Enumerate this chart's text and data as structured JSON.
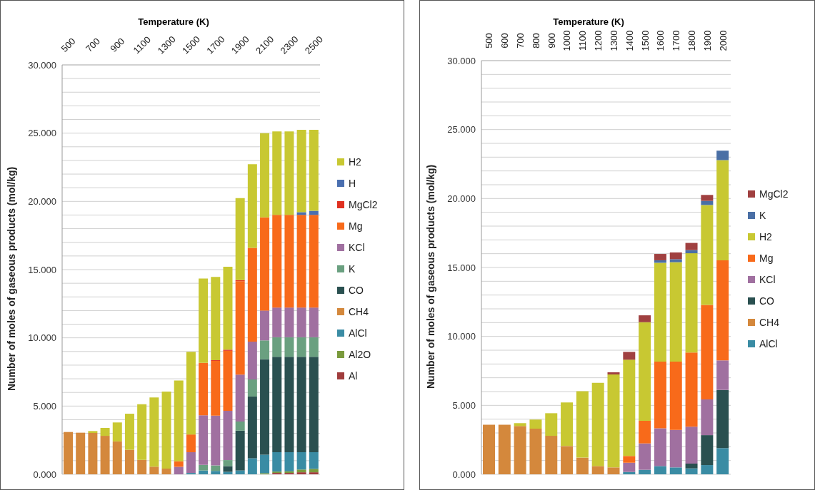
{
  "chart_data": [
    {
      "type": "bar",
      "stacked": true,
      "xlabel": "Temperature (K)",
      "ylabel": "Number of moles of gaseous products (mol/kg)",
      "categories": [
        "500",
        null,
        "700",
        null,
        "900",
        null,
        "1100",
        null,
        "1300",
        null,
        "1500",
        null,
        "1700",
        null,
        "1900",
        null,
        "2100",
        null,
        "2300",
        null,
        "2500"
      ],
      "series": [
        {
          "name": "Al",
          "color": "#a03c3c",
          "values": [
            null,
            null,
            null,
            null,
            null,
            null,
            null,
            null,
            null,
            null,
            null,
            null,
            null,
            null,
            null,
            null,
            null,
            0.1,
            0.1,
            0.15,
            0.15
          ]
        },
        {
          "name": "Al2O",
          "color": "#7a9a3c",
          "values": [
            null,
            null,
            null,
            null,
            null,
            null,
            null,
            null,
            null,
            null,
            null,
            null,
            null,
            null,
            null,
            null,
            0.08,
            0.1,
            0.12,
            0.2,
            0.25
          ]
        },
        {
          "name": "AlCl",
          "color": "#3a8ca4",
          "values": [
            null,
            null,
            null,
            null,
            null,
            null,
            null,
            null,
            null,
            null,
            0.1,
            0.28,
            0.25,
            0.18,
            0.28,
            1.18,
            1.36,
            1.42,
            1.4,
            1.27,
            1.22
          ]
        },
        {
          "name": "CH4",
          "color": "#d4883c",
          "values": [
            3.1,
            3.05,
            3.03,
            2.82,
            2.41,
            1.8,
            1.06,
            0.56,
            0.42,
            null,
            null,
            null,
            null,
            null,
            null,
            null,
            null,
            null,
            null,
            null,
            null
          ]
        },
        {
          "name": "CO",
          "color": "#2a5050",
          "values": [
            null,
            null,
            null,
            null,
            null,
            null,
            null,
            null,
            null,
            null,
            null,
            null,
            null,
            0.42,
            2.92,
            4.52,
            6.99,
            6.99,
            6.99,
            6.99,
            6.99
          ]
        },
        {
          "name": "K",
          "color": "#6aa080",
          "values": [
            null,
            null,
            null,
            null,
            null,
            null,
            null,
            null,
            null,
            null,
            null,
            0.41,
            0.4,
            0.44,
            0.67,
            1.25,
            1.38,
            1.43,
            1.43,
            1.43,
            1.43
          ]
        },
        {
          "name": "KCl",
          "color": "#a070a0",
          "values": [
            null,
            null,
            null,
            null,
            null,
            null,
            null,
            null,
            null,
            0.55,
            1.52,
            3.64,
            3.65,
            3.61,
            3.44,
            2.77,
            2.19,
            2.18,
            2.18,
            2.18,
            2.18
          ]
        },
        {
          "name": "Mg",
          "color": "#f86a1a",
          "values": [
            null,
            null,
            null,
            null,
            null,
            null,
            null,
            null,
            null,
            0.4,
            1.3,
            3.84,
            4.01,
            4.4,
            6.84,
            6.87,
            6.83,
            6.79,
            6.79,
            6.79,
            6.79
          ]
        },
        {
          "name": "MgCl2",
          "color": "#e03020",
          "values": [
            null,
            null,
            null,
            null,
            null,
            null,
            null,
            null,
            null,
            null,
            null,
            null,
            0.05,
            0.08,
            0.08,
            null,
            null,
            null,
            null,
            null,
            null
          ]
        },
        {
          "name": "H",
          "color": "#4a6fb0",
          "values": [
            null,
            null,
            null,
            null,
            null,
            null,
            null,
            null,
            null,
            null,
            null,
            null,
            null,
            null,
            null,
            null,
            null,
            null,
            null,
            0.2,
            0.3
          ]
        },
        {
          "name": "H2",
          "color": "#c8c832",
          "values": [
            null,
            null,
            0.14,
            0.58,
            1.39,
            2.64,
            4.08,
            5.07,
            5.64,
            5.92,
            6.06,
            6.18,
            6.11,
            6.08,
            6.01,
            6.13,
            6.16,
            6.12,
            6.12,
            6.04,
            5.94
          ]
        }
      ],
      "ylim": [
        0,
        30
      ],
      "yticks": [
        {
          "value": 0,
          "label": "0.000"
        },
        {
          "value": 1,
          "label": null
        },
        {
          "value": 2,
          "label": null
        },
        {
          "value": 3,
          "label": null
        },
        {
          "value": 4,
          "label": null
        },
        {
          "value": 5,
          "label": "5.000"
        },
        {
          "value": 6,
          "label": null
        },
        {
          "value": 7,
          "label": null
        },
        {
          "value": 8,
          "label": null
        },
        {
          "value": 9,
          "label": null
        },
        {
          "value": 10,
          "label": "10.000"
        },
        {
          "value": 11,
          "label": null
        },
        {
          "value": 12,
          "label": null
        },
        {
          "value": 13,
          "label": null
        },
        {
          "value": 14,
          "label": null
        },
        {
          "value": 15,
          "label": "15.000"
        },
        {
          "value": 16,
          "label": null
        },
        {
          "value": 17,
          "label": null
        },
        {
          "value": 18,
          "label": null
        },
        {
          "value": 19,
          "label": null
        },
        {
          "value": 20,
          "label": "20.000"
        },
        {
          "value": 21,
          "label": null
        },
        {
          "value": 22,
          "label": null
        },
        {
          "value": 23,
          "label": null
        },
        {
          "value": 24,
          "label": null
        },
        {
          "value": 25,
          "label": "25.000"
        },
        {
          "value": 26,
          "label": null
        },
        {
          "value": 27,
          "label": null
        },
        {
          "value": 28,
          "label": null
        },
        {
          "value": 29,
          "label": null
        },
        {
          "value": 30,
          "label": "30.000"
        }
      ],
      "grid": "y",
      "legend": "right"
    },
    {
      "type": "bar",
      "stacked": true,
      "xlabel": "Temperature (K)",
      "ylabel": "Number of moles of gaseous products (mol/kg)",
      "categories": [
        "500",
        "600",
        "700",
        "800",
        "900",
        "1000",
        "1100",
        "1200",
        "1300",
        "1400",
        "1500",
        "1600",
        "1700",
        "1800",
        "1900",
        "2000"
      ],
      "series": [
        {
          "name": "AlCl",
          "color": "#3a8ca4",
          "values": [
            null,
            null,
            null,
            null,
            null,
            null,
            null,
            null,
            null,
            0.17,
            0.33,
            0.6,
            0.5,
            0.43,
            0.67,
            1.9
          ]
        },
        {
          "name": "CH4",
          "color": "#d4883c",
          "values": [
            3.6,
            3.6,
            3.5,
            3.31,
            2.79,
            2.05,
            1.21,
            0.6,
            0.5,
            null,
            null,
            null,
            null,
            null,
            null,
            null
          ]
        },
        {
          "name": "CO",
          "color": "#2a5050",
          "values": [
            null,
            null,
            null,
            null,
            null,
            null,
            null,
            null,
            null,
            null,
            null,
            null,
            null,
            0.35,
            2.17,
            4.22
          ]
        },
        {
          "name": "KCl",
          "color": "#a070a0",
          "values": [
            null,
            null,
            null,
            null,
            null,
            null,
            null,
            null,
            null,
            0.67,
            1.91,
            2.74,
            2.72,
            2.67,
            2.59,
            2.14
          ]
        },
        {
          "name": "Mg",
          "color": "#f86a1a",
          "values": [
            null,
            null,
            null,
            null,
            null,
            null,
            null,
            null,
            null,
            0.49,
            1.64,
            4.83,
            4.95,
            5.38,
            6.85,
            7.26
          ]
        },
        {
          "name": "H2",
          "color": "#c8c832",
          "values": [
            null,
            null,
            0.21,
            0.66,
            1.64,
            3.16,
            4.81,
            6.04,
            6.74,
            6.98,
            7.15,
            7.17,
            7.21,
            7.2,
            7.25,
            7.27
          ]
        },
        {
          "name": "K",
          "color": "#4a6fa5",
          "values": [
            null,
            null,
            null,
            null,
            null,
            null,
            null,
            null,
            null,
            null,
            null,
            0.18,
            0.22,
            0.23,
            0.3,
            0.68
          ]
        },
        {
          "name": "MgCl2",
          "color": "#a04040",
          "values": [
            null,
            null,
            null,
            null,
            null,
            null,
            null,
            null,
            0.16,
            0.57,
            0.5,
            0.46,
            0.49,
            0.52,
            0.43,
            null
          ]
        }
      ],
      "ylim": [
        0,
        30
      ],
      "yticks": [
        {
          "value": 0,
          "label": "0.000"
        },
        {
          "value": 1,
          "label": null
        },
        {
          "value": 2,
          "label": null
        },
        {
          "value": 3,
          "label": null
        },
        {
          "value": 4,
          "label": null
        },
        {
          "value": 5,
          "label": "5.000"
        },
        {
          "value": 6,
          "label": null
        },
        {
          "value": 7,
          "label": null
        },
        {
          "value": 8,
          "label": null
        },
        {
          "value": 9,
          "label": null
        },
        {
          "value": 10,
          "label": "10.000"
        },
        {
          "value": 11,
          "label": null
        },
        {
          "value": 12,
          "label": null
        },
        {
          "value": 13,
          "label": null
        },
        {
          "value": 14,
          "label": null
        },
        {
          "value": 15,
          "label": "15.000"
        },
        {
          "value": 16,
          "label": null
        },
        {
          "value": 17,
          "label": null
        },
        {
          "value": 18,
          "label": null
        },
        {
          "value": 19,
          "label": null
        },
        {
          "value": 20,
          "label": "20.000"
        },
        {
          "value": 21,
          "label": null
        },
        {
          "value": 22,
          "label": null
        },
        {
          "value": 23,
          "label": null
        },
        {
          "value": 24,
          "label": null
        },
        {
          "value": 25,
          "label": "25.000"
        },
        {
          "value": 26,
          "label": null
        },
        {
          "value": 27,
          "label": null
        },
        {
          "value": 28,
          "label": null
        },
        {
          "value": 29,
          "label": null
        },
        {
          "value": 30,
          "label": "30.000"
        }
      ],
      "grid": "y",
      "legend": "right"
    }
  ]
}
